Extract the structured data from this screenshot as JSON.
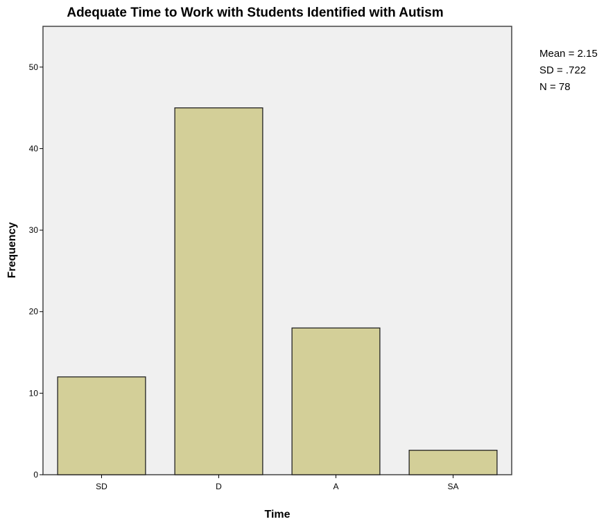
{
  "chart_data": {
    "type": "bar",
    "title": "Adequate Time to Work with Students Identified with Autism",
    "xlabel": "Time",
    "ylabel": "Frequency",
    "categories": [
      "SD",
      "D",
      "A",
      "SA"
    ],
    "values": [
      12,
      45,
      18,
      3
    ],
    "ylim": [
      0,
      55
    ],
    "yticks": [
      0,
      10,
      20,
      30,
      40,
      50
    ],
    "grid": false,
    "legend": "none",
    "colors": {
      "bar_fill": "#d3cf98",
      "bar_stroke": "#222222",
      "plot_background": "#f0f0f0",
      "plot_border": "#444444"
    }
  },
  "stats": {
    "mean": "Mean = 2.15",
    "sd": "SD = .722",
    "n": "N = 78"
  }
}
